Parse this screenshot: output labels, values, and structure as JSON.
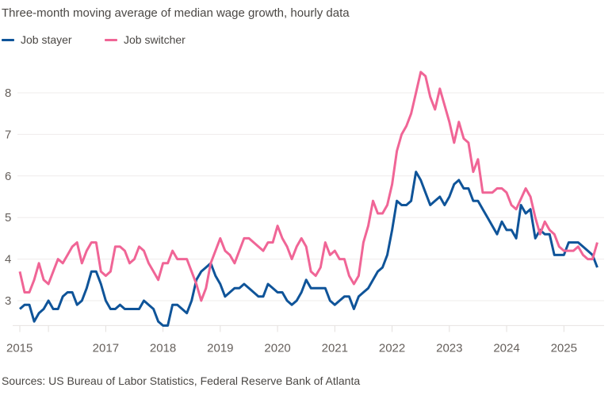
{
  "chart_data": {
    "type": "line",
    "title": "Three-month moving average of median wage growth, hourly data",
    "source": "Sources: US Bureau of Labor Statistics, Federal Reserve Bank of Atlanta",
    "xlabel": "",
    "ylabel": "",
    "ylim": [
      2.4,
      8.6
    ],
    "yticks": [
      "3",
      "4",
      "5",
      "6",
      "7",
      "8"
    ],
    "xticks": [
      {
        "date": "2015-07",
        "label": "2015"
      },
      {
        "date": "2016-01",
        "label": ""
      },
      {
        "date": "2017-01",
        "label": "2017"
      },
      {
        "date": "2018-01",
        "label": "2018"
      },
      {
        "date": "2019-01",
        "label": "2019"
      },
      {
        "date": "2020-01",
        "label": "2020"
      },
      {
        "date": "2021-01",
        "label": "2021"
      },
      {
        "date": "2022-01",
        "label": "2022"
      },
      {
        "date": "2023-01",
        "label": "2023"
      },
      {
        "date": "2024-01",
        "label": "2024"
      },
      {
        "date": "2025-01",
        "label": "2025"
      }
    ],
    "grid": "horizontal",
    "legend": "top-left",
    "x": [
      "2015-07",
      "2015-08",
      "2015-09",
      "2015-10",
      "2015-11",
      "2015-12",
      "2016-01",
      "2016-02",
      "2016-03",
      "2016-04",
      "2016-05",
      "2016-06",
      "2016-07",
      "2016-08",
      "2016-09",
      "2016-10",
      "2016-11",
      "2016-12",
      "2017-01",
      "2017-02",
      "2017-03",
      "2017-04",
      "2017-05",
      "2017-06",
      "2017-07",
      "2017-08",
      "2017-09",
      "2017-10",
      "2017-11",
      "2017-12",
      "2018-01",
      "2018-02",
      "2018-03",
      "2018-04",
      "2018-05",
      "2018-06",
      "2018-07",
      "2018-08",
      "2018-09",
      "2018-10",
      "2018-11",
      "2018-12",
      "2019-01",
      "2019-02",
      "2019-03",
      "2019-04",
      "2019-05",
      "2019-06",
      "2019-07",
      "2019-08",
      "2019-09",
      "2019-10",
      "2019-11",
      "2019-12",
      "2020-01",
      "2020-02",
      "2020-03",
      "2020-04",
      "2020-05",
      "2020-06",
      "2020-07",
      "2020-08",
      "2020-09",
      "2020-10",
      "2020-11",
      "2020-12",
      "2021-01",
      "2021-02",
      "2021-03",
      "2021-04",
      "2021-05",
      "2021-06",
      "2021-07",
      "2021-08",
      "2021-09",
      "2021-10",
      "2021-11",
      "2021-12",
      "2022-01",
      "2022-02",
      "2022-03",
      "2022-04",
      "2022-05",
      "2022-06",
      "2022-07",
      "2022-08",
      "2022-09",
      "2022-10",
      "2022-11",
      "2022-12",
      "2023-01",
      "2023-02",
      "2023-03",
      "2023-04",
      "2023-05",
      "2023-06",
      "2023-07",
      "2023-08",
      "2023-09",
      "2023-10",
      "2023-11",
      "2023-12",
      "2024-01",
      "2024-02",
      "2024-03",
      "2024-04",
      "2024-05",
      "2024-06",
      "2024-07",
      "2024-08",
      "2024-09",
      "2024-10",
      "2024-11",
      "2024-12",
      "2025-01",
      "2025-02",
      "2025-03",
      "2025-04",
      "2025-05",
      "2025-06",
      "2025-07",
      "2025-08"
    ],
    "series": [
      {
        "name": "Job stayer",
        "color": "#0f5499",
        "values": [
          2.8,
          2.9,
          2.9,
          2.5,
          2.7,
          2.8,
          3.0,
          2.8,
          2.8,
          3.1,
          3.2,
          3.2,
          2.9,
          3.0,
          3.3,
          3.7,
          3.7,
          3.4,
          3.0,
          2.8,
          2.8,
          2.9,
          2.8,
          2.8,
          2.8,
          2.8,
          3.0,
          2.9,
          2.8,
          2.5,
          2.4,
          2.4,
          2.9,
          2.9,
          2.8,
          2.7,
          3.0,
          3.5,
          3.7,
          3.8,
          3.9,
          3.6,
          3.4,
          3.1,
          3.2,
          3.3,
          3.3,
          3.4,
          3.3,
          3.2,
          3.1,
          3.1,
          3.4,
          3.3,
          3.2,
          3.2,
          3.0,
          2.9,
          3.0,
          3.2,
          3.5,
          3.3,
          3.3,
          3.3,
          3.3,
          3.0,
          2.9,
          3.0,
          3.1,
          3.1,
          2.8,
          3.1,
          3.2,
          3.3,
          3.5,
          3.7,
          3.8,
          4.1,
          4.7,
          5.4,
          5.3,
          5.3,
          5.4,
          6.1,
          5.9,
          5.6,
          5.3,
          5.4,
          5.5,
          5.3,
          5.5,
          5.8,
          5.9,
          5.7,
          5.7,
          5.4,
          5.4,
          5.2,
          5.0,
          4.8,
          4.6,
          4.9,
          4.7,
          4.7,
          4.5,
          5.3,
          5.1,
          5.2,
          4.5,
          4.7,
          4.6,
          4.6,
          4.1,
          4.1,
          4.1,
          4.4,
          4.4,
          4.4,
          4.3,
          4.2,
          4.1,
          3.8
        ]
      },
      {
        "name": "Job switcher",
        "color": "#f06596",
        "values": [
          3.7,
          3.2,
          3.2,
          3.5,
          3.9,
          3.5,
          3.4,
          3.7,
          4.0,
          3.9,
          4.1,
          4.3,
          4.4,
          3.9,
          4.2,
          4.4,
          4.4,
          3.7,
          3.6,
          3.7,
          4.3,
          4.3,
          4.2,
          3.9,
          4.0,
          4.3,
          4.2,
          3.9,
          3.7,
          3.5,
          3.9,
          3.9,
          4.2,
          4.0,
          4.0,
          4.0,
          3.7,
          3.4,
          3.0,
          3.3,
          3.9,
          4.2,
          4.5,
          4.2,
          4.1,
          3.9,
          4.2,
          4.5,
          4.5,
          4.4,
          4.3,
          4.2,
          4.4,
          4.4,
          4.8,
          4.5,
          4.3,
          4.0,
          4.3,
          4.5,
          4.3,
          3.7,
          3.6,
          3.8,
          4.4,
          4.1,
          4.2,
          4.0,
          4.0,
          3.6,
          3.4,
          3.6,
          4.4,
          4.8,
          5.4,
          5.1,
          5.1,
          5.3,
          5.8,
          6.6,
          7.0,
          7.2,
          7.5,
          8.0,
          8.5,
          8.4,
          7.9,
          7.6,
          8.1,
          7.7,
          7.3,
          6.8,
          7.3,
          6.9,
          6.8,
          6.1,
          6.4,
          5.6,
          5.6,
          5.6,
          5.7,
          5.7,
          5.6,
          5.3,
          5.2,
          5.45,
          5.7,
          5.5,
          5.0,
          4.6,
          4.9,
          4.7,
          4.6,
          4.3,
          4.2,
          4.2,
          4.2,
          4.3,
          4.1,
          4.0,
          4.0,
          4.4
        ]
      }
    ]
  }
}
